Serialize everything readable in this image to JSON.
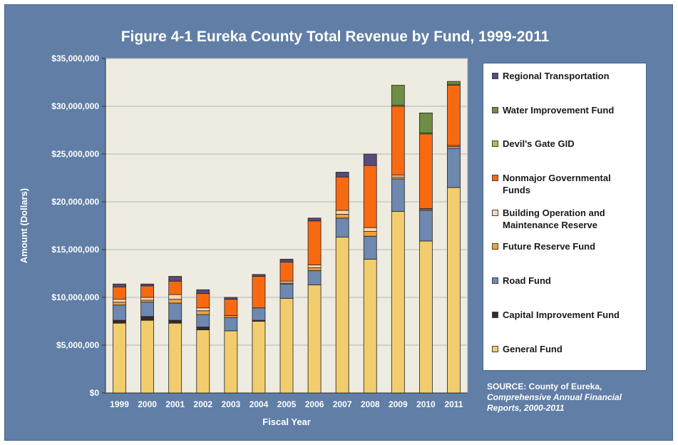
{
  "title": "Figure 4-1 Eureka County Total Revenue by Fund, 1999-2011",
  "source": {
    "line1": "SOURCE: County of Eureka,",
    "line2": "Comprehensive Annual Financial",
    "line3": "Reports, 2000-2011"
  },
  "colors": {
    "General Fund": "#f2cd6e",
    "Capital Improvement Fund": "#3a2a2a",
    "Road Fund": "#6e88b0",
    "Future Reserve Fund": "#f7a035",
    "Building Operation and Maintenance Reserve": "#f8d6b8",
    "Nonmajor Governmental Funds": "#f86a12",
    "Devil's Gate GID": "#9ec83e",
    "Water Improvement Fund": "#6d8e44",
    "Regional Transportation": "#5a4a7a"
  },
  "chart_data": {
    "type": "bar",
    "stacked": true,
    "title": "Figure 4-1 Eureka County Total Revenue by Fund, 1999-2011",
    "xlabel": "Fiscal Year",
    "ylabel": "Amount (Dollars)",
    "ylim": [
      0,
      35000000
    ],
    "yticks": [
      "$0",
      "$5,000,000",
      "$10,000,000",
      "$15,000,000",
      "$20,000,000",
      "$25,000,000",
      "$30,000,000",
      "$35,000,000"
    ],
    "ytick_values": [
      0,
      5000000,
      10000000,
      15000000,
      20000000,
      25000000,
      30000000,
      35000000
    ],
    "grid": true,
    "legend_position": "right",
    "categories": [
      "1999",
      "2000",
      "2001",
      "2002",
      "2003",
      "2004",
      "2005",
      "2006",
      "2007",
      "2008",
      "2009",
      "2010",
      "2011"
    ],
    "series": [
      {
        "name": "General Fund",
        "values": [
          7300000,
          7600000,
          7300000,
          6600000,
          6500000,
          7500000,
          9900000,
          11300000,
          16300000,
          14000000,
          19000000,
          15900000,
          21500000
        ]
      },
      {
        "name": "Capital Improvement Fund",
        "values": [
          300000,
          400000,
          300000,
          300000,
          0,
          100000,
          0,
          0,
          0,
          0,
          0,
          0,
          0
        ]
      },
      {
        "name": "Road Fund",
        "values": [
          1600000,
          1500000,
          1800000,
          1300000,
          1400000,
          1300000,
          1500000,
          1500000,
          2000000,
          2400000,
          3400000,
          3200000,
          4100000
        ]
      },
      {
        "name": "Future Reserve Fund",
        "values": [
          300000,
          200000,
          400000,
          400000,
          200000,
          0,
          100000,
          300000,
          400000,
          500000,
          200000,
          100000,
          200000
        ]
      },
      {
        "name": "Building Operation and Maintenance Reserve",
        "values": [
          300000,
          300000,
          500000,
          300000,
          0,
          0,
          200000,
          300000,
          400000,
          400000,
          200000,
          100000,
          100000
        ]
      },
      {
        "name": "Nonmajor Governmental Funds",
        "values": [
          1300000,
          1200000,
          1400000,
          1500000,
          1700000,
          3300000,
          2000000,
          4600000,
          3500000,
          6500000,
          7200000,
          7800000,
          6300000
        ]
      },
      {
        "name": "Devil's Gate GID",
        "values": [
          0,
          0,
          0,
          0,
          0,
          0,
          0,
          0,
          0,
          0,
          100000,
          100000,
          100000
        ]
      },
      {
        "name": "Water Improvement Fund",
        "values": [
          0,
          0,
          0,
          0,
          0,
          0,
          0,
          0,
          0,
          0,
          2100000,
          2100000,
          300000
        ]
      },
      {
        "name": "Regional Transportation",
        "values": [
          300000,
          200000,
          500000,
          400000,
          200000,
          200000,
          300000,
          300000,
          500000,
          1200000,
          0,
          0,
          0
        ]
      }
    ]
  },
  "legend": [
    {
      "label": "Regional Transportation",
      "lines": [
        "Regional Transportation"
      ]
    },
    {
      "label": "Water Improvement Fund",
      "lines": [
        "Water Improvement Fund"
      ]
    },
    {
      "label": "Devil's Gate GID",
      "lines": [
        "Devil's Gate GID"
      ]
    },
    {
      "label": "Nonmajor Governmental Funds",
      "lines": [
        "Nonmajor Governmental",
        "Funds"
      ]
    },
    {
      "label": "Building Operation and Maintenance Reserve",
      "lines": [
        "Building Operation and",
        "Maintenance Reserve"
      ]
    },
    {
      "label": "Future Reserve Fund",
      "lines": [
        "Future Reserve Fund"
      ]
    },
    {
      "label": "Road Fund",
      "lines": [
        "Road Fund"
      ]
    },
    {
      "label": "Capital Improvement Fund",
      "lines": [
        "Capital Improvement Fund"
      ]
    },
    {
      "label": "General Fund",
      "lines": [
        "General Fund"
      ]
    }
  ]
}
